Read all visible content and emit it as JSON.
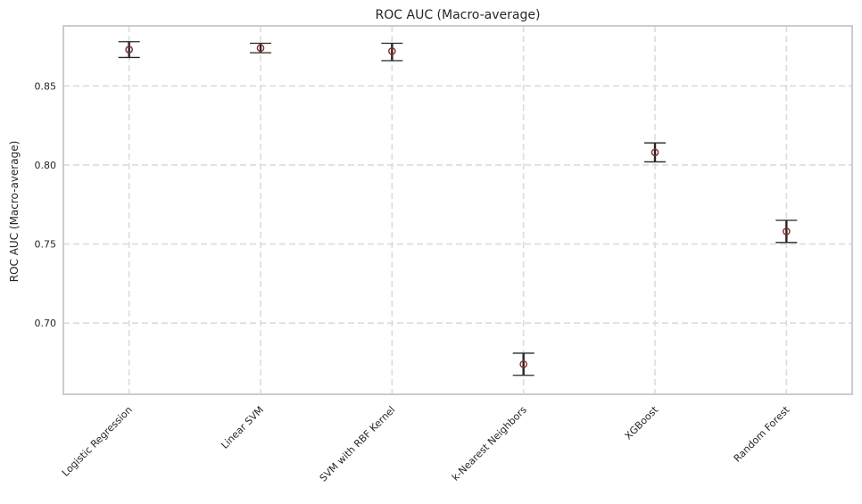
{
  "chart_data": {
    "type": "scatter",
    "title": "ROC AUC (Macro-average)",
    "xlabel": "",
    "ylabel": "ROC AUC (Macro-average)",
    "categories": [
      "Logistic Regression",
      "Linear SVM",
      "SVM with RBF Kernel",
      "k-Nearest Neighbors",
      "XGBoost",
      "Random Forest"
    ],
    "values": [
      0.873,
      0.874,
      0.872,
      0.674,
      0.808,
      0.758
    ],
    "error_lower": [
      0.868,
      0.871,
      0.866,
      0.667,
      0.802,
      0.751
    ],
    "error_upper": [
      0.878,
      0.877,
      0.877,
      0.681,
      0.814,
      0.765
    ],
    "ylim": [
      0.655,
      0.888
    ],
    "yticks": [
      0.7,
      0.75,
      0.8,
      0.85
    ],
    "grid": true,
    "marker": "hollow-circle",
    "colors": {
      "marker": "#8b2a2a",
      "errorbar": "#262626",
      "grid": "#dcdcdc",
      "frame": "#cccccc"
    }
  }
}
